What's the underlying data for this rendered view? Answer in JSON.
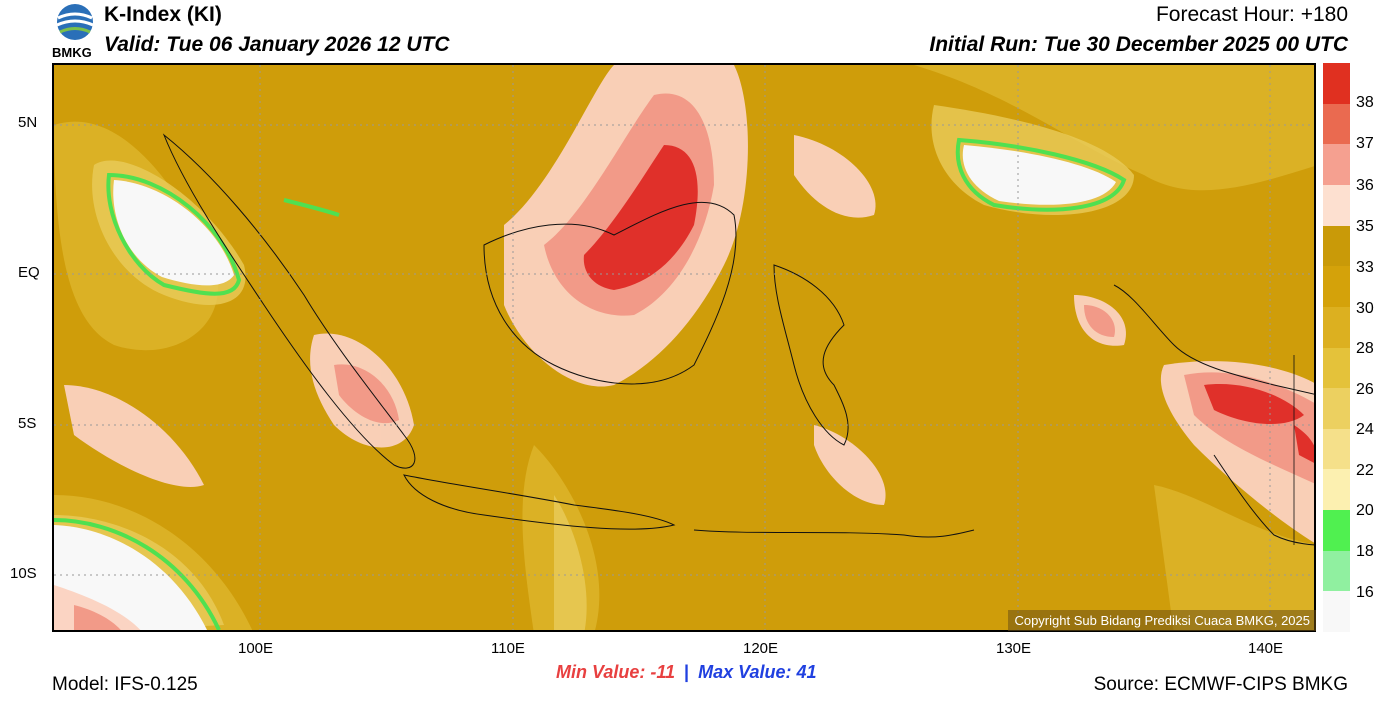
{
  "header": {
    "logo_text": "BMKG",
    "title": "K-Index (KI)",
    "valid": "Valid: Tue 06 January 2026 12 UTC",
    "forecast_hour": "Forecast Hour: +180",
    "initial_run": "Initial Run: Tue 30 December 2025 00 UTC"
  },
  "axes": {
    "lat_labels": [
      "5N",
      "EQ",
      "5S",
      "10S"
    ],
    "lon_labels": [
      "100E",
      "110E",
      "120E",
      "130E",
      "140E"
    ]
  },
  "colorbar": {
    "ticks": [
      "38",
      "37",
      "36",
      "35",
      "33",
      "30",
      "28",
      "26",
      "24",
      "22",
      "20",
      "18",
      "16"
    ],
    "colors": [
      "#e03020",
      "#ea6a50",
      "#f5a090",
      "#fde0d0",
      "#c99a08",
      "#d4a20a",
      "#dcb020",
      "#e4c23a",
      "#ecd060",
      "#f5e08a",
      "#fcf0b0",
      "#50f050",
      "#90f0a0",
      "#f8f8f8"
    ]
  },
  "copyright": "Copyright Sub Bidang Prediksi Cuaca BMKG, 2025",
  "stats": {
    "min_label": "Min Value: -11",
    "separator": "|",
    "max_label": "Max Value:  41"
  },
  "footer": {
    "model": "Model: IFS-0.125",
    "source": "Source: ECMWF-CIPS BMKG"
  }
}
